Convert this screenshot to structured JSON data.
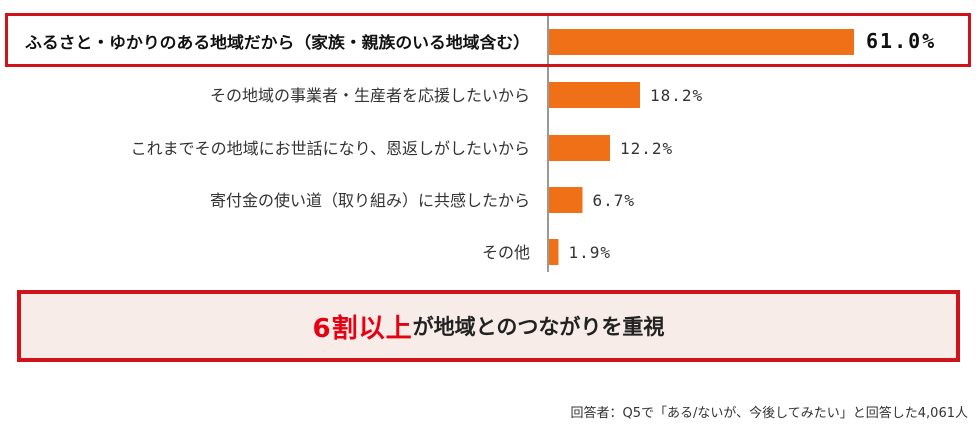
{
  "chart_data": {
    "type": "bar",
    "orientation": "horizontal",
    "categories": [
      "ふるさと・ゆかりのある地域だから（家族・親族のいる地域含む）",
      "その地域の事業者・生産者を応援したいから",
      "これまでその地域にお世話になり、恩返しがしたいから",
      "寄付金の使い道（取り組み）に共感したから",
      "その他"
    ],
    "values": [
      61.0,
      18.2,
      12.2,
      6.7,
      1.9
    ],
    "value_labels": [
      "61.0%",
      "18.2%",
      "12.2%",
      "6.7%",
      "1.9%"
    ],
    "unit": "%",
    "xlim": [
      0,
      62
    ],
    "highlighted_index": 0,
    "grid": false,
    "legend": "none"
  },
  "summary": {
    "accent_text": "6割以上",
    "rest_text": "が地域とのつながりを重視"
  },
  "footnote": "回答者：Q5で「ある/ないが、今後してみたい」と回答した4,061人",
  "colors": {
    "bar": "#f07017",
    "highlight_border": "#d0121b",
    "accent_text": "#e60012",
    "summary_background": "#f7ece7",
    "axis": "#555555"
  }
}
